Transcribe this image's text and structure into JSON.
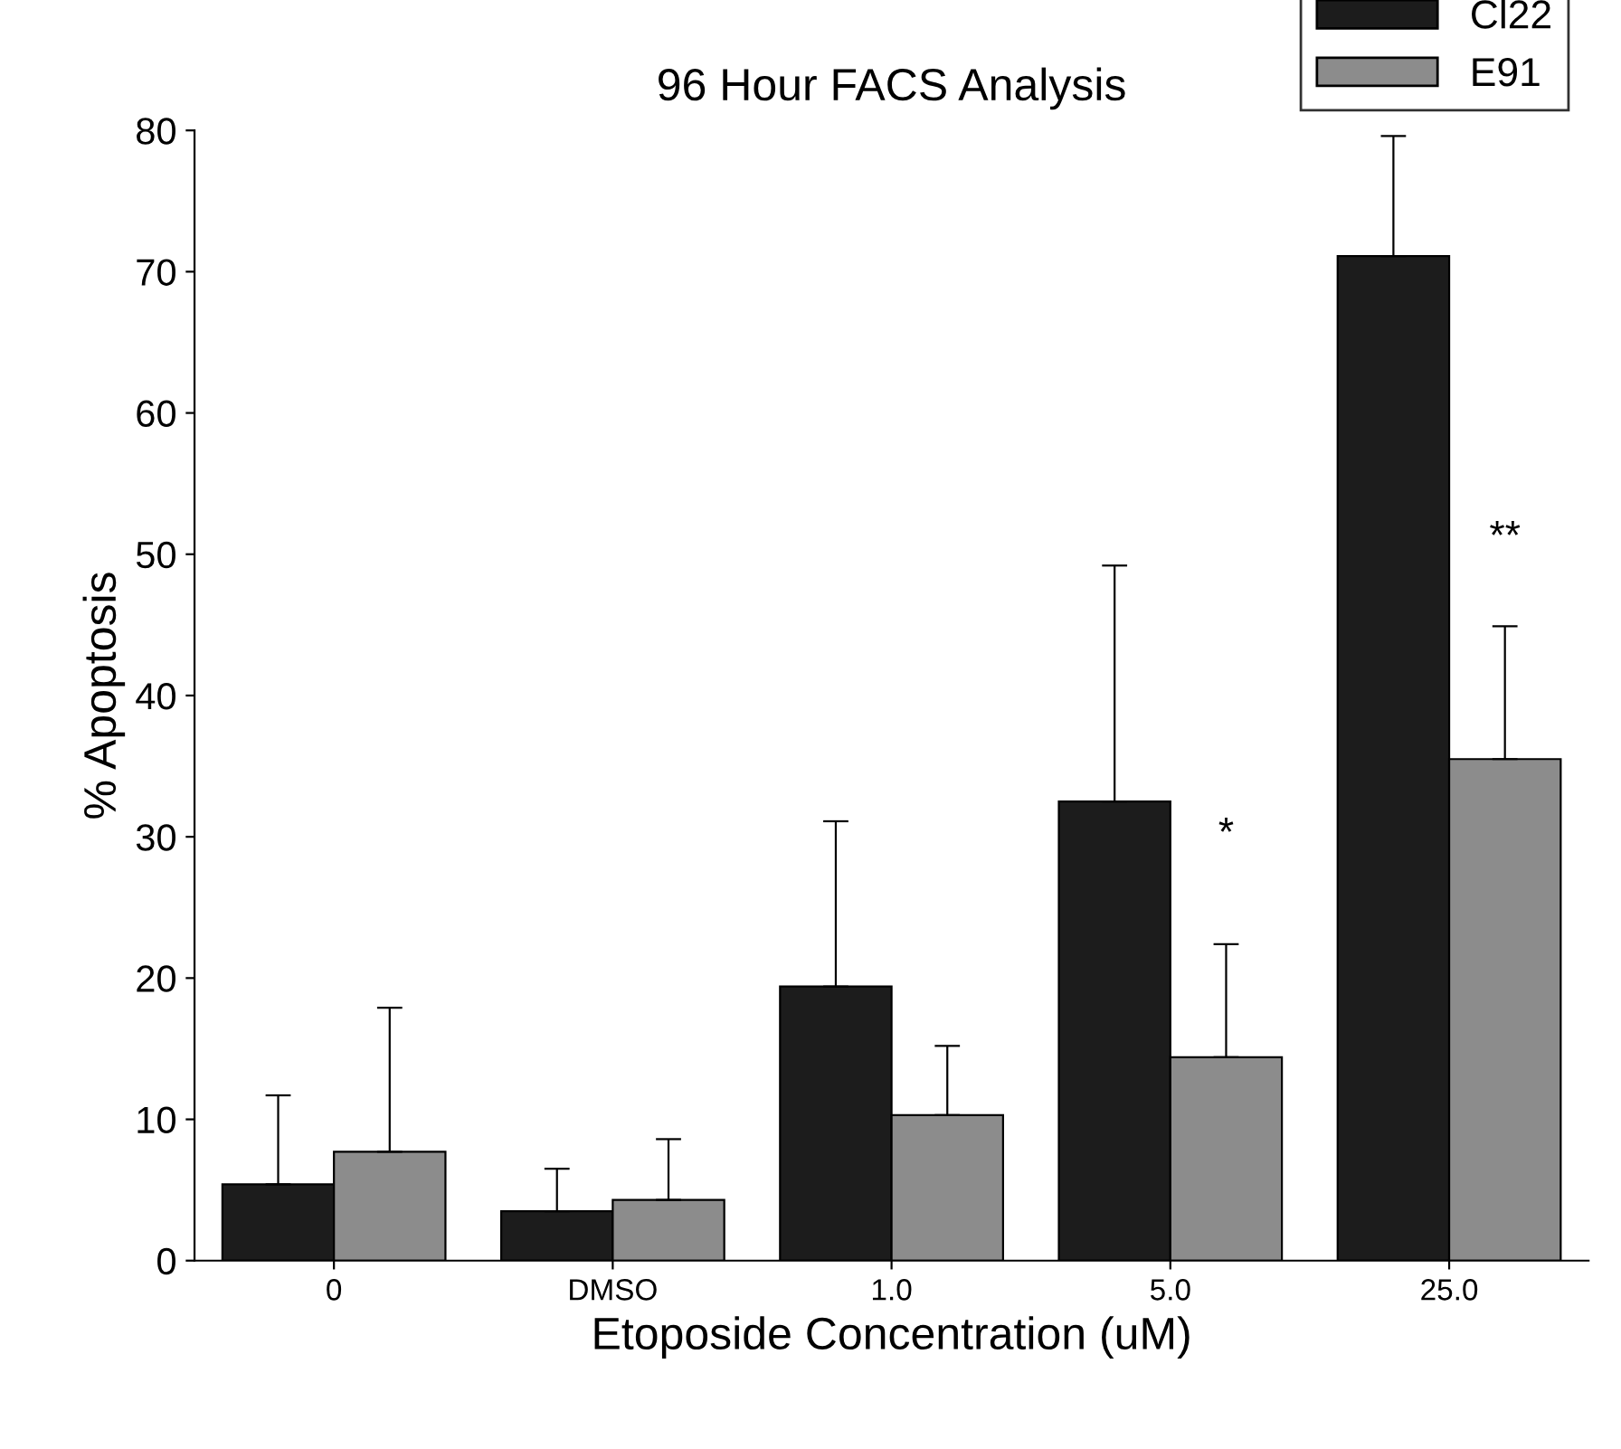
{
  "chart_data": {
    "type": "bar",
    "title": "96 Hour FACS Analysis",
    "xlabel": "Etoposide Concentration (uM)",
    "ylabel": "% Apoptosis",
    "categories": [
      "0",
      "DMSO",
      "1.0",
      "5.0",
      "25.0"
    ],
    "series": [
      {
        "name": "Cl22",
        "color": "#1c1c1c",
        "values": [
          5.4,
          3.5,
          19.4,
          32.5,
          71.1
        ],
        "errors": [
          6.3,
          3.0,
          11.7,
          16.7,
          8.5
        ]
      },
      {
        "name": "E91",
        "color": "#8c8c8c",
        "values": [
          7.7,
          4.3,
          10.3,
          14.4,
          35.5
        ],
        "errors": [
          10.2,
          4.3,
          4.9,
          8.0,
          9.4
        ]
      }
    ],
    "annotations": [
      {
        "text": "*",
        "x": "5.0",
        "y": 28.8
      },
      {
        "text": "**",
        "x": "25.0",
        "y": 49.8
      }
    ],
    "ylim": [
      0,
      80
    ],
    "yticks": [
      0,
      10,
      20,
      30,
      40,
      50,
      60,
      70,
      80
    ],
    "grid": false,
    "legend": "top right"
  }
}
